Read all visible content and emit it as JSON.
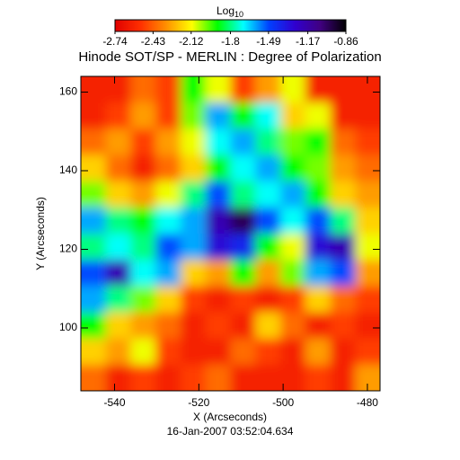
{
  "chart_data": {
    "type": "heatmap",
    "title": "Hinode SOT/SP - MERLIN : Degree of Polarization",
    "subtitle": "16-Jan-2007 03:52:04.634",
    "x_label": "X (Arcseconds)",
    "y_label": "Y (Arcseconds)",
    "xlim": [
      -548,
      -477
    ],
    "ylim": [
      84,
      164
    ],
    "xticks": [
      -540,
      -520,
      -500,
      -480
    ],
    "yticks": [
      100,
      120,
      140,
      160
    ],
    "colorbar": {
      "title": "Log",
      "title_subscript": "10",
      "lim": [
        -2.74,
        -0.86
      ],
      "ticks": [
        -2.74,
        -2.43,
        -2.12,
        -1.8,
        -1.49,
        -1.17,
        -0.86
      ]
    },
    "colormap": [
      "#e00000",
      "#ff3000",
      "#ff9000",
      "#ffff00",
      "#00ff00",
      "#00ffff",
      "#0040ff",
      "#3000d0",
      "#400080",
      "#000000"
    ],
    "z": [
      [
        -2.6,
        -2.6,
        -2.4,
        -2.5,
        -1.9,
        -2.1,
        -2.5,
        -2.3,
        -2.1,
        -2.6,
        -2.6,
        -2.6
      ],
      [
        -2.6,
        -2.5,
        -2.3,
        -2.5,
        -2.0,
        -1.6,
        -1.9,
        -1.7,
        -2.2,
        -2.1,
        -2.6,
        -2.6
      ],
      [
        -2.4,
        -2.3,
        -2.5,
        -2.3,
        -2.1,
        -1.7,
        -1.6,
        -1.8,
        -2.0,
        -1.9,
        -2.4,
        -2.5
      ],
      [
        -2.2,
        -2.4,
        -2.6,
        -2.4,
        -2.2,
        -1.9,
        -1.7,
        -1.6,
        -1.9,
        -2.0,
        -2.3,
        -2.4
      ],
      [
        -2.0,
        -2.2,
        -2.3,
        -2.1,
        -1.8,
        -1.5,
        -1.8,
        -1.7,
        -1.6,
        -1.9,
        -2.2,
        -2.3
      ],
      [
        -1.6,
        -1.8,
        -1.9,
        -1.7,
        -1.6,
        -1.2,
        -1.0,
        -1.5,
        -1.7,
        -1.5,
        -1.8,
        -2.2
      ],
      [
        -1.8,
        -1.7,
        -1.8,
        -1.5,
        -1.6,
        -1.3,
        -1.4,
        -1.9,
        -2.1,
        -1.3,
        -1.2,
        -2.1
      ],
      [
        -1.5,
        -1.2,
        -1.7,
        -1.6,
        -2.2,
        -2.3,
        -1.9,
        -2.3,
        -2.0,
        -1.6,
        -1.5,
        -2.3
      ],
      [
        -1.6,
        -1.8,
        -2.0,
        -2.2,
        -2.5,
        -2.6,
        -2.5,
        -2.6,
        -2.5,
        -2.2,
        -2.4,
        -2.5
      ],
      [
        -1.9,
        -2.2,
        -2.3,
        -2.4,
        -2.6,
        -2.5,
        -2.6,
        -2.2,
        -2.4,
        -2.6,
        -2.5,
        -2.6
      ],
      [
        -2.2,
        -2.3,
        -2.1,
        -2.5,
        -2.6,
        -2.6,
        -2.4,
        -2.5,
        -2.6,
        -2.3,
        -2.6,
        -2.5
      ],
      [
        -2.4,
        -2.6,
        -2.5,
        -2.6,
        -2.5,
        -2.4,
        -2.6,
        -2.6,
        -2.6,
        -2.5,
        -2.6,
        -2.3
      ]
    ]
  }
}
